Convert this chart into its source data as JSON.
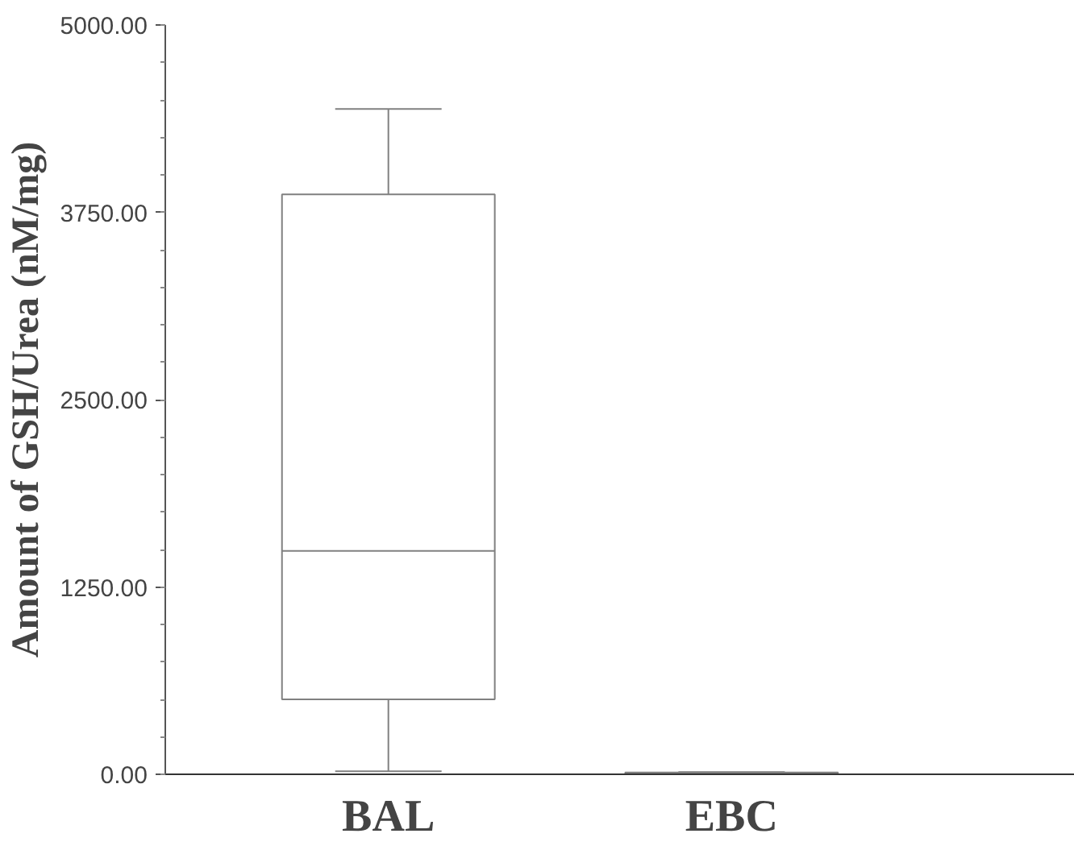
{
  "chart_data": {
    "type": "box",
    "ylabel": "Amount of GSH/Urea (nM/mg)",
    "categories": [
      "BAL",
      "EBC"
    ],
    "boxes": [
      {
        "low": 20,
        "q1": 500,
        "median": 1490,
        "q3": 3870,
        "high": 4440
      },
      {
        "low": 5,
        "q1": 8,
        "median": 10,
        "q3": 12,
        "high": 15
      }
    ],
    "color": "#808080",
    "ylim": [
      0,
      5000
    ],
    "yticks": [
      {
        "value": 0,
        "label": "0.00"
      },
      {
        "value": 1250,
        "label": "1250.00"
      },
      {
        "value": 2500,
        "label": "2500.00"
      },
      {
        "value": 3750,
        "label": "3750.00"
      },
      {
        "value": 5000,
        "label": "5000.00"
      }
    ],
    "grid": false
  }
}
